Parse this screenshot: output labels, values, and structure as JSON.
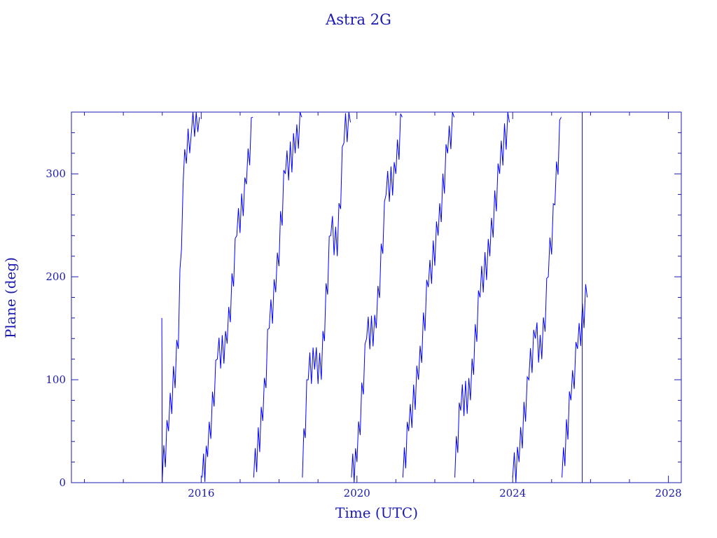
{
  "colors": {
    "axis": "#1a1ab0",
    "series": "#0000ff",
    "background": "#ffffff"
  },
  "chart_data": {
    "type": "line",
    "title": "Astra 2G",
    "xlabel": "Time (UTC)",
    "ylabel": "Plane (deg)",
    "xlim": [
      "2012-09-01",
      "2028-05-01"
    ],
    "ylim": [
      0,
      360
    ],
    "xticks": [
      "2016",
      "2020",
      "2024",
      "2028"
    ],
    "yticks": [
      0,
      100,
      200,
      300
    ],
    "grid": false,
    "legend": "none",
    "markers": [
      {
        "x": "2025-10-15",
        "note": "vertical line"
      }
    ],
    "series": [
      {
        "values": [
          [
            "2014-12-28",
            160
          ],
          [
            "2014-12-31",
            0
          ],
          [
            "2015-03-01",
            50
          ],
          [
            "2015-06-01",
            130
          ],
          [
            "2015-07-15",
            290
          ],
          [
            "2015-08-15",
            310
          ],
          [
            "2015-10-01",
            340
          ],
          [
            "2015-12-15",
            355
          ],
          [
            "2016-01-10",
            5
          ],
          [
            "2016-03-01",
            25
          ],
          [
            "2016-06-01",
            120
          ],
          [
            "2016-09-01",
            135
          ],
          [
            "2016-12-01",
            240
          ],
          [
            "2017-03-01",
            290
          ],
          [
            "2017-05-01",
            355
          ],
          [
            "2017-05-08",
            5
          ],
          [
            "2017-08-01",
            60
          ],
          [
            "2017-10-01",
            150
          ],
          [
            "2017-12-01",
            185
          ],
          [
            "2018-03-01",
            300
          ],
          [
            "2018-06-01",
            320
          ],
          [
            "2018-08-01",
            355
          ],
          [
            "2018-08-08",
            5
          ],
          [
            "2018-10-01",
            100
          ],
          [
            "2018-12-01",
            110
          ],
          [
            "2019-02-01",
            100
          ],
          [
            "2019-05-01",
            240
          ],
          [
            "2019-07-01",
            220
          ],
          [
            "2019-09-01",
            330
          ],
          [
            "2019-11-01",
            350
          ],
          [
            "2019-11-10",
            5
          ],
          [
            "2020-01-01",
            20
          ],
          [
            "2020-04-01",
            140
          ],
          [
            "2020-07-01",
            150
          ],
          [
            "2020-10-01",
            280
          ],
          [
            "2021-01-01",
            300
          ],
          [
            "2021-03-01",
            355
          ],
          [
            "2021-03-08",
            5
          ],
          [
            "2021-05-01",
            50
          ],
          [
            "2021-08-01",
            100
          ],
          [
            "2021-11-01",
            190
          ],
          [
            "2022-02-01",
            240
          ],
          [
            "2022-05-01",
            320
          ],
          [
            "2022-07-01",
            355
          ],
          [
            "2022-07-08",
            5
          ],
          [
            "2022-09-01",
            70
          ],
          [
            "2022-12-01",
            80
          ],
          [
            "2023-03-01",
            180
          ],
          [
            "2023-06-01",
            220
          ],
          [
            "2023-09-01",
            300
          ],
          [
            "2023-12-01",
            350
          ],
          [
            "2024-01-01",
            5
          ],
          [
            "2024-03-01",
            20
          ],
          [
            "2024-06-01",
            100
          ],
          [
            "2024-08-01",
            140
          ],
          [
            "2024-10-01",
            120
          ],
          [
            "2024-12-01",
            200
          ],
          [
            "2025-02-01",
            270
          ],
          [
            "2025-04-01",
            355
          ],
          [
            "2025-04-08",
            5
          ],
          [
            "2025-07-01",
            80
          ],
          [
            "2025-09-01",
            130
          ],
          [
            "2025-12-01",
            180
          ]
        ]
      }
    ]
  }
}
